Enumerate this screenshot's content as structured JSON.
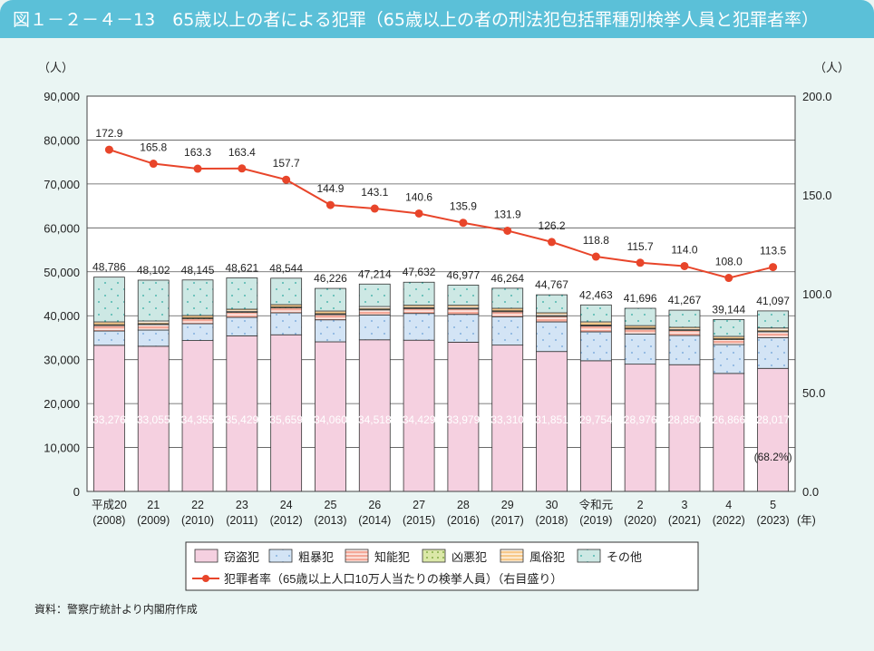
{
  "header": {
    "title": "図１－２－４－13　65歳以上の者による犯罪（65歳以上の者の刑法犯包括罪種別検挙人員と犯罪者率）"
  },
  "source": "資料：警察庁統計より内閣府作成",
  "chart_data": {
    "type": "bar",
    "stacked": true,
    "left_unit": "（人）",
    "right_unit": "（人）",
    "ylim": [
      0,
      90000
    ],
    "y2lim": [
      0,
      200
    ],
    "yticks": [
      "0",
      "10,000",
      "20,000",
      "30,000",
      "40,000",
      "50,000",
      "60,000",
      "70,000",
      "80,000",
      "90,000"
    ],
    "y2ticks": [
      "0.0",
      "50.0",
      "100.0",
      "150.0",
      "200.0"
    ],
    "grid": true,
    "legend_position": "bottom",
    "x_suffix": "(年)",
    "categories": [
      [
        "平成20",
        "(2008)"
      ],
      [
        "21",
        "(2009)"
      ],
      [
        "22",
        "(2010)"
      ],
      [
        "23",
        "(2011)"
      ],
      [
        "24",
        "(2012)"
      ],
      [
        "25",
        "(2013)"
      ],
      [
        "26",
        "(2014)"
      ],
      [
        "27",
        "(2015)"
      ],
      [
        "28",
        "(2016)"
      ],
      [
        "29",
        "(2017)"
      ],
      [
        "30",
        "(2018)"
      ],
      [
        "令和元",
        "(2019)"
      ],
      [
        "2",
        "(2020)"
      ],
      [
        "3",
        "(2021)"
      ],
      [
        "4",
        "(2022)"
      ],
      [
        "5",
        "(2023)"
      ]
    ],
    "series": [
      {
        "name": "窃盗犯",
        "color": "#f5d0e0",
        "values": [
          33276,
          33055,
          34355,
          35429,
          35659,
          34060,
          34518,
          34429,
          33979,
          33310,
          31851,
          29754,
          28976,
          28850,
          26866,
          28017
        ]
      },
      {
        "name": "粗暴犯",
        "color": "#d3e4f5",
        "values": [
          3250,
          3690,
          3830,
          4200,
          5000,
          5010,
          5660,
          6090,
          6330,
          6460,
          6750,
          6580,
          6870,
          6650,
          6570,
          7000
        ]
      },
      {
        "name": "知能犯",
        "color": "#f4a898",
        "values": [
          1240,
          1240,
          1120,
          1120,
          1120,
          1200,
          1150,
          1120,
          1240,
          1150,
          1240,
          1360,
          1140,
          1120,
          1120,
          1310
        ]
      },
      {
        "name": "凶悪犯",
        "color": "#dbe8a8",
        "values": [
          200,
          200,
          200,
          200,
          200,
          200,
          200,
          200,
          200,
          200,
          200,
          200,
          200,
          200,
          200,
          200
        ]
      },
      {
        "name": "風俗犯",
        "color": "#f7c98a",
        "values": [
          630,
          620,
          540,
          540,
          540,
          600,
          570,
          540,
          630,
          570,
          620,
          710,
          560,
          540,
          540,
          680
        ]
      },
      {
        "name": "その他",
        "color": "#cde8e4",
        "values": [
          10190,
          9297,
          8100,
          7132,
          6025,
          5156,
          5116,
          5253,
          4598,
          4574,
          4106,
          3859,
          3950,
          3907,
          3848,
          3890
        ]
      }
    ],
    "totals": [
      "48,786",
      "48,102",
      "48,145",
      "48,621",
      "48,544",
      "46,226",
      "47,214",
      "47,632",
      "46,977",
      "46,264",
      "44,767",
      "42,463",
      "41,696",
      "41,267",
      "39,144",
      "41,097"
    ],
    "theft_labels": [
      "33,276",
      "33,055",
      "34,355",
      "35,429",
      "35,659",
      "34,060",
      "34,518",
      "34,429",
      "33,979",
      "33,310",
      "31,851",
      "29,754",
      "28,976",
      "28,850",
      "26,866",
      "28,017"
    ],
    "theft_share_note": "(68.2%)",
    "line": {
      "name": "犯罪者率（65歳以上人口10万人当たりの検挙人員）（右目盛り）",
      "color": "#e8452a",
      "axis": "right",
      "values": [
        172.9,
        165.8,
        163.3,
        163.4,
        157.7,
        144.9,
        143.1,
        140.6,
        135.9,
        131.9,
        126.2,
        118.8,
        115.7,
        114.0,
        108.0,
        113.5
      ],
      "labels": [
        "172.9",
        "165.8",
        "163.3",
        "163.4",
        "157.7",
        "144.9",
        "143.1",
        "140.6",
        "135.9",
        "131.9",
        "126.2",
        "118.8",
        "115.7",
        "114.0",
        "108.0",
        "113.5"
      ]
    }
  }
}
